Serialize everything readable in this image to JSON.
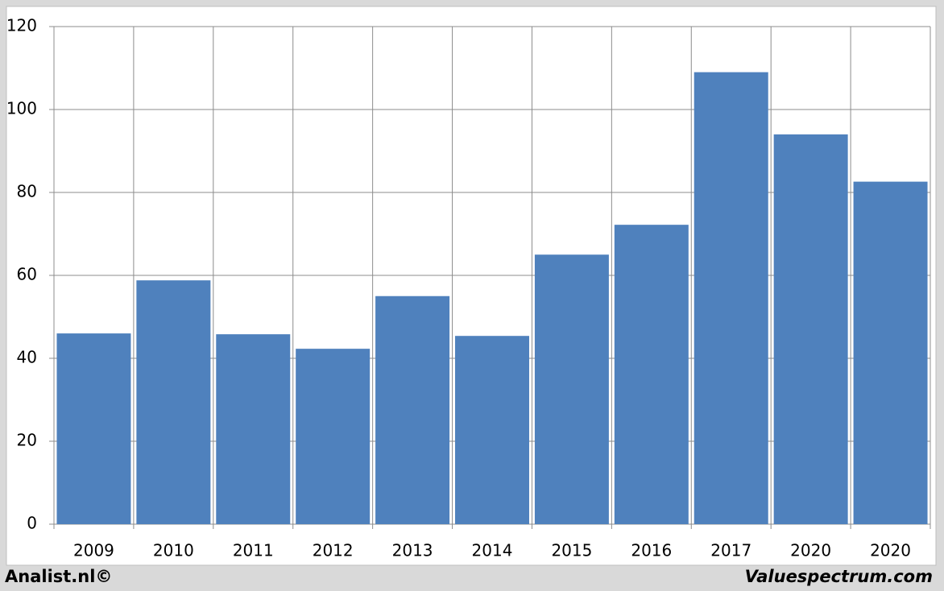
{
  "chart_data": {
    "type": "bar",
    "categories": [
      "2009",
      "2010",
      "2011",
      "2012",
      "2013",
      "2014",
      "2015",
      "2016",
      "2017",
      "2020",
      "2020"
    ],
    "values": [
      46,
      58.8,
      45.8,
      42.3,
      55,
      45.4,
      65,
      72.2,
      109,
      94,
      82.6
    ],
    "color": "#4f81bd",
    "ylim": [
      0,
      120
    ],
    "yticks": [
      0,
      20,
      40,
      60,
      80,
      100,
      120
    ],
    "grid": true
  },
  "footer": {
    "left": "Analist.nl©",
    "right": "Valuespectrum.com"
  }
}
